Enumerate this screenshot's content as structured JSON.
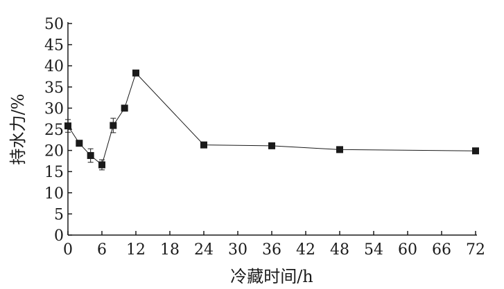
{
  "chart_data": {
    "type": "line",
    "title": "",
    "xlabel": "冷藏时间/h",
    "ylabel": "持水力/%",
    "xlim": [
      0,
      72
    ],
    "ylim": [
      0,
      50
    ],
    "x_ticks": [
      0,
      6,
      12,
      18,
      24,
      30,
      36,
      42,
      48,
      54,
      60,
      66,
      72
    ],
    "y_ticks": [
      0,
      5,
      10,
      15,
      20,
      25,
      30,
      35,
      40,
      45,
      50
    ],
    "grid": false,
    "legend": "none",
    "colors": {
      "line": "#1a1a1a",
      "marker": "#1a1a1a"
    },
    "series": [
      {
        "marker": "filled-square",
        "points": [
          {
            "x": 0,
            "y": 25.8,
            "err": 1.5
          },
          {
            "x": 2,
            "y": 21.7,
            "err": 0.5
          },
          {
            "x": 4,
            "y": 18.8,
            "err": 1.6
          },
          {
            "x": 6,
            "y": 16.6,
            "err": 1.2
          },
          {
            "x": 8,
            "y": 25.9,
            "err": 1.7
          },
          {
            "x": 10,
            "y": 30.0,
            "err": 0.5
          },
          {
            "x": 12,
            "y": 38.3,
            "err": 0.5
          },
          {
            "x": 24,
            "y": 21.3,
            "err": 0.6
          },
          {
            "x": 36,
            "y": 21.1,
            "err": 0.6
          },
          {
            "x": 48,
            "y": 20.2,
            "err": 0.6
          },
          {
            "x": 72,
            "y": 19.9,
            "err": 0.6
          }
        ]
      }
    ]
  }
}
